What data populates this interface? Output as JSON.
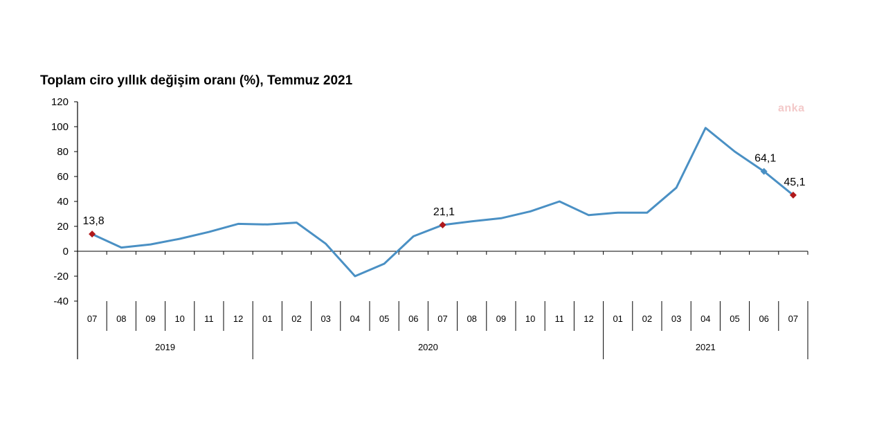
{
  "chart_data": {
    "type": "line",
    "title": "Toplam ciro yıllık değişim oranı (%), Temmuz 2021",
    "xlabel": "",
    "ylabel": "",
    "ylim": [
      -40,
      120
    ],
    "yticks": [
      120,
      100,
      80,
      60,
      40,
      20,
      0,
      -20,
      -40
    ],
    "ytick_labels": [
      "120",
      "100",
      "80",
      "60",
      "40",
      "20",
      "0",
      "-20",
      "-40"
    ],
    "categories": [
      "07",
      "08",
      "09",
      "10",
      "11",
      "12",
      "01",
      "02",
      "03",
      "04",
      "05",
      "06",
      "07",
      "08",
      "09",
      "10",
      "11",
      "12",
      "01",
      "02",
      "03",
      "04",
      "05",
      "06",
      "07"
    ],
    "years": [
      {
        "label": "2019",
        "start": 0,
        "end": 5
      },
      {
        "label": "2020",
        "start": 6,
        "end": 17
      },
      {
        "label": "2021",
        "start": 18,
        "end": 24
      }
    ],
    "series": [
      {
        "name": "Toplam ciro yıllık değişim oranı (%)",
        "color": "#4a90c4",
        "values": [
          13.8,
          3,
          5.5,
          10,
          15.5,
          22,
          21.5,
          23,
          6,
          -20,
          -10,
          12,
          21.1,
          24,
          26.5,
          32,
          40,
          29,
          31,
          31,
          51,
          99,
          80,
          64.1,
          45.1
        ]
      }
    ],
    "data_labels": [
      {
        "index": 0,
        "text": "13,8",
        "marker_color": "#b0191c"
      },
      {
        "index": 12,
        "text": "21,1",
        "marker_color": "#b0191c"
      },
      {
        "index": 23,
        "text": "64,1",
        "marker_color": "#4a90c4"
      },
      {
        "index": 24,
        "text": "45,1",
        "marker_color": "#b0191c"
      }
    ]
  },
  "watermark": "anka"
}
